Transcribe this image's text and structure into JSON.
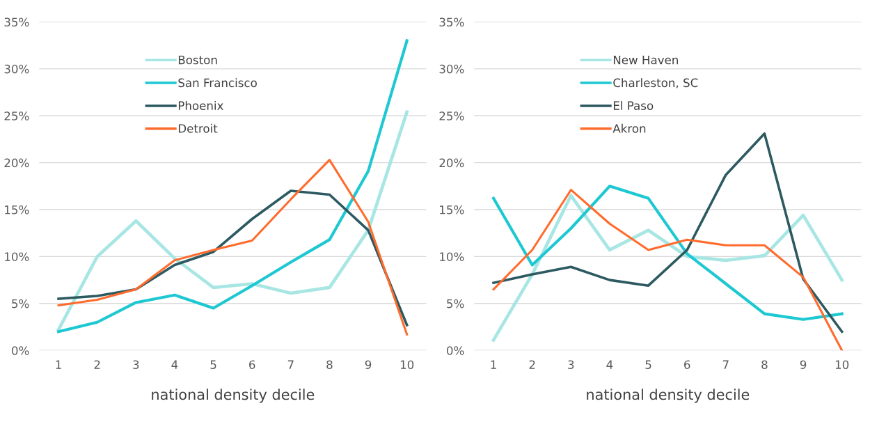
{
  "chart_data": [
    {
      "type": "line",
      "xlabel": "national density decile",
      "categories": [
        "1",
        "2",
        "3",
        "4",
        "5",
        "6",
        "7",
        "8",
        "9",
        "10"
      ],
      "ylim": [
        0,
        35
      ],
      "yticks": [
        {
          "value": 0,
          "label": "0%"
        },
        {
          "value": 5,
          "label": "5%"
        },
        {
          "value": 10,
          "label": "10%"
        },
        {
          "value": 15,
          "label": "15%"
        },
        {
          "value": 20,
          "label": "20%"
        },
        {
          "value": 25,
          "label": "25%"
        },
        {
          "value": 30,
          "label": "30%"
        },
        {
          "value": 35,
          "label": "35%"
        }
      ],
      "grid": "y",
      "legend": "top left",
      "marker": "none",
      "series": [
        {
          "name": "Boston",
          "color": "#a8e6e4",
          "values": [
            2.2,
            10.0,
            13.8,
            9.8,
            6.7,
            7.1,
            6.1,
            6.7,
            12.8,
            25.4
          ]
        },
        {
          "name": "San Francisco",
          "color": "#1ec8d2",
          "values": [
            2.0,
            3.0,
            5.1,
            5.9,
            4.5,
            6.9,
            9.4,
            11.8,
            19.1,
            33.0
          ]
        },
        {
          "name": "Phoenix",
          "color": "#2c5a60",
          "values": [
            5.5,
            5.8,
            6.5,
            9.1,
            10.5,
            14.0,
            17.0,
            16.6,
            12.8,
            2.7
          ]
        },
        {
          "name": "Detroit",
          "color": "#ff6b2c",
          "values": [
            4.8,
            5.4,
            6.5,
            9.6,
            10.7,
            11.7,
            16.1,
            20.3,
            13.7,
            1.7
          ]
        }
      ]
    },
    {
      "type": "line",
      "xlabel": "national density decile",
      "categories": [
        "1",
        "2",
        "3",
        "4",
        "5",
        "6",
        "7",
        "8",
        "9",
        "10"
      ],
      "ylim": [
        0,
        35
      ],
      "yticks": [
        {
          "value": 0,
          "label": "0%"
        },
        {
          "value": 5,
          "label": "5%"
        },
        {
          "value": 10,
          "label": "10%"
        },
        {
          "value": 15,
          "label": "15%"
        },
        {
          "value": 20,
          "label": "20%"
        },
        {
          "value": 25,
          "label": "25%"
        },
        {
          "value": 30,
          "label": "30%"
        },
        {
          "value": 35,
          "label": "35%"
        }
      ],
      "grid": "y",
      "legend": "top left",
      "marker": "none",
      "series": [
        {
          "name": "New Haven",
          "color": "#a8e6e4",
          "values": [
            1.1,
            8.1,
            16.5,
            10.7,
            12.8,
            10.0,
            9.6,
            10.1,
            14.4,
            7.5
          ]
        },
        {
          "name": "Charleston, SC",
          "color": "#1ec8d2",
          "values": [
            16.2,
            9.1,
            13.0,
            17.5,
            16.2,
            10.3,
            7.1,
            3.9,
            3.3,
            3.9
          ]
        },
        {
          "name": "El Paso",
          "color": "#2c5a60",
          "values": [
            7.2,
            8.1,
            8.9,
            7.5,
            6.9,
            10.7,
            18.7,
            23.1,
            7.6,
            2.0
          ]
        },
        {
          "name": "Akron",
          "color": "#ff6b2c",
          "values": [
            6.5,
            10.7,
            17.1,
            13.5,
            10.7,
            11.8,
            11.2,
            11.2,
            7.8,
            0.0
          ]
        }
      ]
    }
  ]
}
